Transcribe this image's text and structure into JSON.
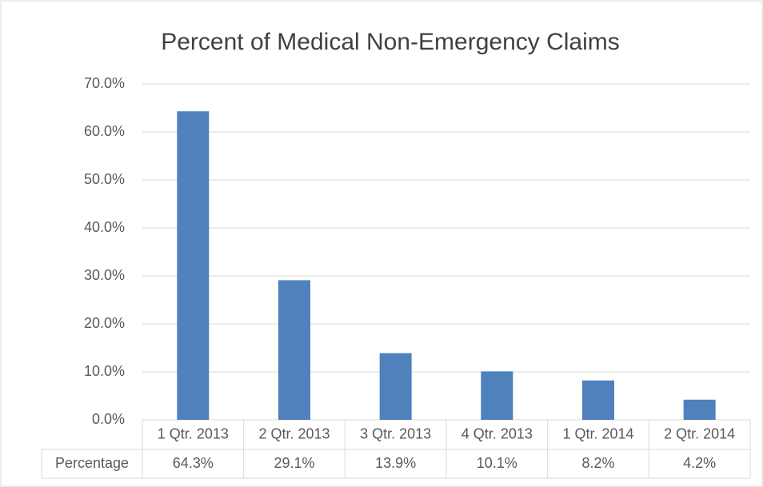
{
  "chart_data": {
    "type": "bar",
    "title": "Percent of Medical Non-Emergency Claims",
    "categories": [
      "1 Qtr. 2013",
      "2 Qtr. 2013",
      "3 Qtr. 2013",
      "4 Qtr. 2013",
      "1 Qtr. 2014",
      "2 Qtr. 2014"
    ],
    "series": [
      {
        "name": "Percentage",
        "color": "#4f81bd",
        "values": [
          64.3,
          29.1,
          13.9,
          10.1,
          8.2,
          4.2
        ],
        "value_labels": [
          "64.3%",
          "29.1%",
          "13.9%",
          "10.1%",
          "8.2%",
          "4.2%"
        ]
      }
    ],
    "ylim": [
      0,
      70
    ],
    "yticks": [
      {
        "value": 0,
        "label": "0.0%"
      },
      {
        "value": 10,
        "label": "10.0%"
      },
      {
        "value": 20,
        "label": "20.0%"
      },
      {
        "value": 30,
        "label": "30.0%"
      },
      {
        "value": 40,
        "label": "40.0%"
      },
      {
        "value": 50,
        "label": "50.0%"
      },
      {
        "value": 60,
        "label": "60.0%"
      },
      {
        "value": 70,
        "label": "70.0%"
      }
    ],
    "grid": true
  }
}
